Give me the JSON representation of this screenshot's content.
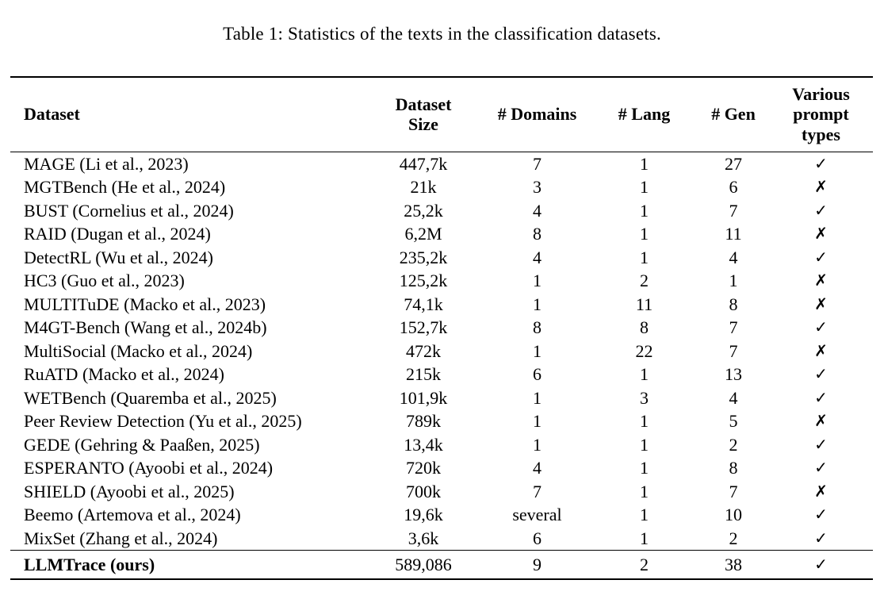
{
  "title": "Table 1: Statistics of the texts in the classification datasets.",
  "table": {
    "columns": [
      "Dataset",
      "Dataset Size",
      "# Domains",
      "# Lang",
      "# Gen",
      "Various prompt types"
    ],
    "glyphs": {
      "yes": "✓",
      "no": "✗"
    },
    "rows": [
      {
        "dataset": "MAGE (Li et al., 2023)",
        "size": "447,7k",
        "domains": "7",
        "lang": "1",
        "gen": "27",
        "various_prompts": "yes",
        "total": false
      },
      {
        "dataset": "MGTBench (He et al., 2024)",
        "size": "21k",
        "domains": "3",
        "lang": "1",
        "gen": "6",
        "various_prompts": "no",
        "total": false
      },
      {
        "dataset": "BUST (Cornelius et al., 2024)",
        "size": "25,2k",
        "domains": "4",
        "lang": "1",
        "gen": "7",
        "various_prompts": "yes",
        "total": false
      },
      {
        "dataset": "RAID (Dugan et al., 2024)",
        "size": "6,2M",
        "domains": "8",
        "lang": "1",
        "gen": "11",
        "various_prompts": "no",
        "total": false
      },
      {
        "dataset": "DetectRL (Wu et al., 2024)",
        "size": "235,2k",
        "domains": "4",
        "lang": "1",
        "gen": "4",
        "various_prompts": "yes",
        "total": false
      },
      {
        "dataset": "HC3 (Guo et al., 2023)",
        "size": "125,2k",
        "domains": "1",
        "lang": "2",
        "gen": "1",
        "various_prompts": "no",
        "total": false
      },
      {
        "dataset": "MULTITuDE (Macko et al., 2023)",
        "size": "74,1k",
        "domains": "1",
        "lang": "11",
        "gen": "8",
        "various_prompts": "no",
        "total": false
      },
      {
        "dataset": "M4GT-Bench (Wang et al., 2024b)",
        "size": "152,7k",
        "domains": "8",
        "lang": "8",
        "gen": "7",
        "various_prompts": "yes",
        "total": false
      },
      {
        "dataset": "MultiSocial (Macko et al., 2024)",
        "size": "472k",
        "domains": "1",
        "lang": "22",
        "gen": "7",
        "various_prompts": "no",
        "total": false
      },
      {
        "dataset": "RuATD (Macko et al., 2024)",
        "size": "215k",
        "domains": "6",
        "lang": "1",
        "gen": "13",
        "various_prompts": "yes",
        "total": false
      },
      {
        "dataset": "WETBench (Quaremba et al., 2025)",
        "size": "101,9k",
        "domains": "1",
        "lang": "3",
        "gen": "4",
        "various_prompts": "yes",
        "total": false
      },
      {
        "dataset": "Peer Review Detection (Yu et al., 2025)",
        "size": "789k",
        "domains": "1",
        "lang": "1",
        "gen": "5",
        "various_prompts": "no",
        "total": false
      },
      {
        "dataset": "GEDE (Gehring & Paaßen, 2025)",
        "size": "13,4k",
        "domains": "1",
        "lang": "1",
        "gen": "2",
        "various_prompts": "yes",
        "total": false
      },
      {
        "dataset": "ESPERANTO (Ayoobi et al., 2024)",
        "size": "720k",
        "domains": "4",
        "lang": "1",
        "gen": "8",
        "various_prompts": "yes",
        "total": false
      },
      {
        "dataset": "SHIELD (Ayoobi et al., 2025)",
        "size": "700k",
        "domains": "7",
        "lang": "1",
        "gen": "7",
        "various_prompts": "no",
        "total": false
      },
      {
        "dataset": "Beemo (Artemova et al., 2024)",
        "size": "19,6k",
        "domains": "several",
        "lang": "1",
        "gen": "10",
        "various_prompts": "yes",
        "total": false
      },
      {
        "dataset": "MixSet (Zhang et al., 2024)",
        "size": "3,6k",
        "domains": "6",
        "lang": "1",
        "gen": "2",
        "various_prompts": "yes",
        "total": false
      },
      {
        "dataset": "LLMTrace (ours)",
        "size": "589,086",
        "domains": "9",
        "lang": "2",
        "gen": "38",
        "various_prompts": "yes",
        "total": true
      }
    ]
  }
}
